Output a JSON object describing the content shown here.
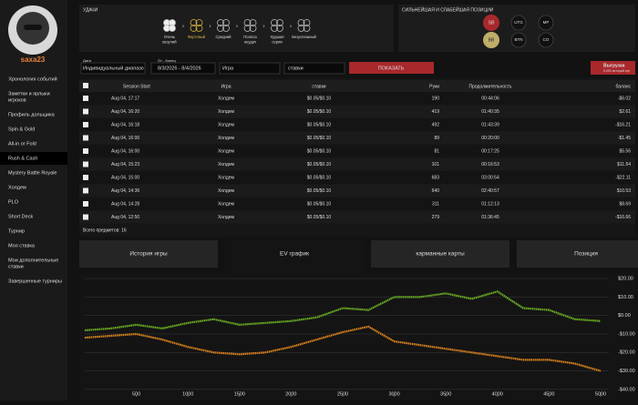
{
  "sidebar": {
    "username": "saxa23",
    "menu": [
      [
        "Хронология событий"
      ],
      [
        "Заметки и ярлыки",
        "игроков"
      ],
      [
        "Профиль дольщика"
      ],
      [
        "Spin & Gold"
      ],
      [
        "All-in or Fold"
      ],
      [
        "Rush & Cash"
      ],
      [
        "Mystery Battle Royale"
      ],
      [
        "Холдем"
      ],
      [
        "PLO"
      ],
      [
        "Short Deck"
      ],
      [
        "Турнир"
      ],
      [
        "Моя ставка"
      ],
      [
        "Мои дополнительные",
        "ставки"
      ],
      [
        "Завершенные турниры"
      ]
    ],
    "active": 5
  },
  "luck": {
    "title": "УДАЧИ",
    "levels": [
      [
        "Очень",
        "везучий"
      ],
      [
        "Фартовый"
      ],
      [
        "Средний"
      ],
      [
        "Полоса",
        "неудач"
      ],
      [
        "Худшая",
        "серия"
      ],
      [
        "Безуспешный"
      ]
    ],
    "active": 1
  },
  "positions": {
    "title": "СИЛЬНЕЙШАЯ И СЛАБЕЙШАЯ ПОЗИЦИИ",
    "strongest": "SB",
    "weakest": "BB",
    "others": [
      "UTG",
      "MP",
      "BTN",
      "CO"
    ]
  },
  "filters": {
    "date_label": "Дата",
    "date_mode": "Индивидуальный диапазо",
    "range_label": "От - Конец",
    "range": "8/3/2026 - 8/4/2026",
    "game": "Игра",
    "stakes": "ставки",
    "show": "ПОКАЗАТЬ",
    "export": "Выгрузка",
    "export_note": "5,000 историй игр"
  },
  "table": {
    "columns": [
      "Session Start",
      "Игра",
      "ставки",
      "Руки",
      "Продолжительность",
      "баланс"
    ],
    "rows": [
      [
        "Aug 04, 17:17",
        "Холдем",
        "$0.05/$0.10",
        "190",
        "00:44:06",
        "-$6.02"
      ],
      [
        "Aug 04, 16:20",
        "Холдем",
        "$0.05/$0.10",
        "419",
        "01:40:35",
        "$2.61"
      ],
      [
        "Aug 04, 16:18",
        "Холдем",
        "$0.05/$0.10",
        "492",
        "01:43:39",
        "-$16.21"
      ],
      [
        "Aug 04, 16:00",
        "Холдем",
        "$0.05/$0.10",
        "89",
        "00:20:00",
        "-$1.45"
      ],
      [
        "Aug 04, 16:00",
        "Холдем",
        "$0.05/$0.10",
        "81",
        "00:17:25",
        "$5.56"
      ],
      [
        "Aug 04, 15:23",
        "Холдем",
        "$0.05/$0.10",
        "101",
        "00:16:53",
        "$11.54"
      ],
      [
        "Aug 04, 15:00",
        "Холдем",
        "$0.05/$0.10",
        "683",
        "03:00:54",
        "-$22.11"
      ],
      [
        "Aug 04, 14:36",
        "Холдем",
        "$0.05/$0.10",
        "640",
        "02:40:57",
        "$10.53"
      ],
      [
        "Aug 04, 14:28",
        "Холдем",
        "$0.05/$0.10",
        "311",
        "01:12:13",
        "$8.69"
      ],
      [
        "Aug 04, 12:50",
        "Холдем",
        "$0.05/$0.10",
        "279",
        "01:36:45",
        "-$16.66"
      ]
    ],
    "footer": "Всего предметов: 16"
  },
  "tabs": {
    "items": [
      "История игры",
      "EV график",
      "карманные карты",
      "Позиция"
    ],
    "active": 1
  },
  "chart_data": {
    "type": "line",
    "x": [
      0,
      250,
      500,
      750,
      1000,
      1250,
      1500,
      1750,
      2000,
      2250,
      2500,
      2750,
      3000,
      3250,
      3500,
      3750,
      4000,
      4250,
      4500,
      4750,
      5000
    ],
    "series": [
      {
        "color": "#6ab023",
        "values": [
          -8,
          -7,
          -5,
          -7,
          -4,
          -2,
          -5,
          -4,
          -3,
          -1,
          4,
          3,
          10,
          10,
          12,
          9,
          13,
          4,
          3,
          -2,
          -3
        ]
      },
      {
        "color": "#d9821e",
        "values": [
          -12,
          -11,
          -10,
          -13,
          -17,
          -20,
          -21,
          -20,
          -17,
          -13,
          -9,
          -6,
          -14,
          -16,
          -18,
          -20,
          -22,
          -24,
          -24,
          -26,
          -30
        ]
      }
    ],
    "xlim": [
      0,
      5080
    ],
    "ylim": [
      -44,
      23
    ],
    "xticks": [
      500,
      1000,
      1500,
      2000,
      2500,
      3000,
      3500,
      4000,
      4500,
      5000
    ],
    "yticks": [
      {
        "value": 20,
        "label": "$20.00"
      },
      {
        "value": 10,
        "label": "$10.00"
      },
      {
        "value": 0,
        "label": "$0.00"
      },
      {
        "value": -10,
        "label": "-$10.00"
      },
      {
        "value": -20,
        "label": "-$20.00"
      },
      {
        "value": -30,
        "label": "-$30.00"
      },
      {
        "value": -40,
        "label": "-$40.00"
      }
    ],
    "grid": true
  }
}
